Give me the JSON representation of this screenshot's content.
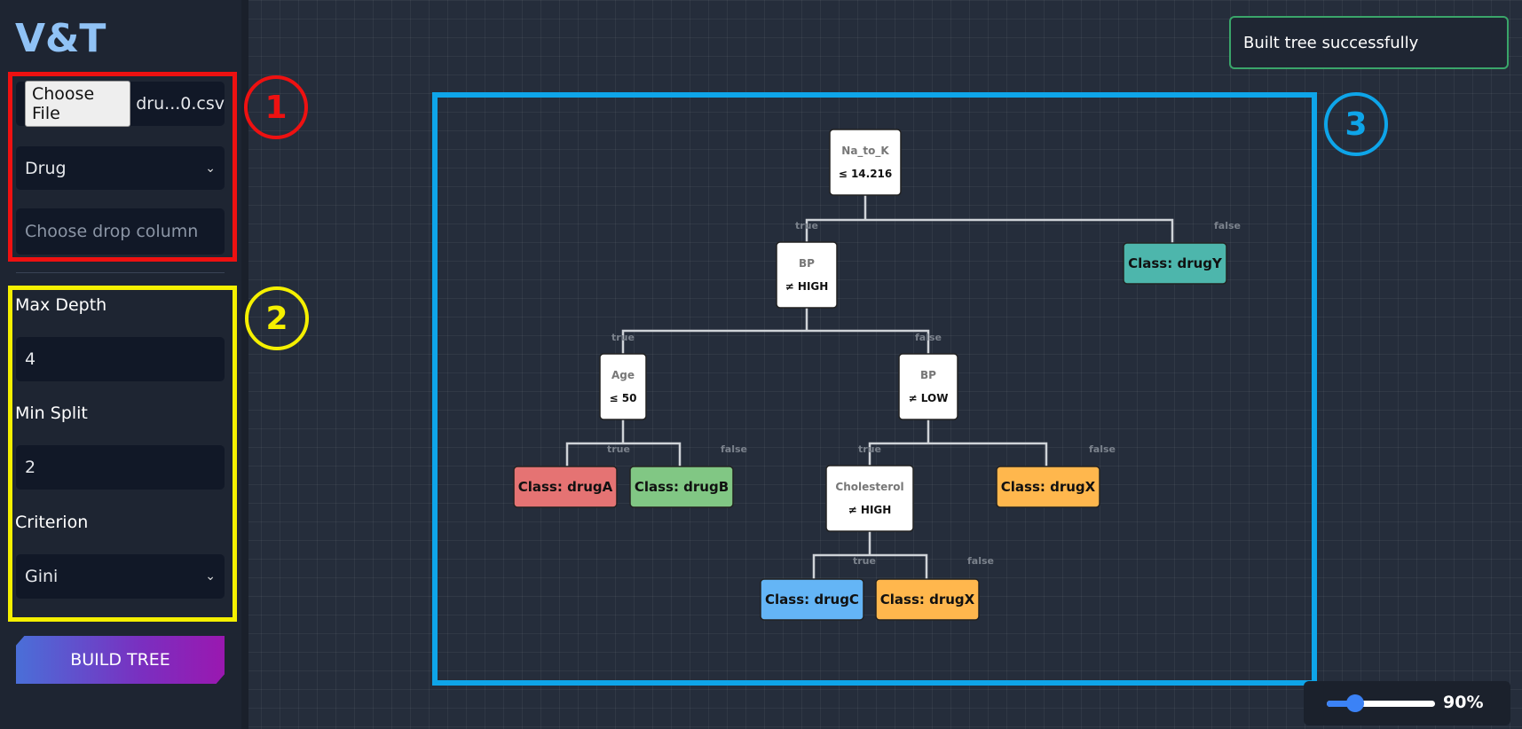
{
  "sidebar": {
    "logo": "V&T",
    "file_button": "Choose File",
    "file_name": "dru...0.csv",
    "target_select": "Drug",
    "drop_column_placeholder": "Choose drop column",
    "max_depth_label": "Max Depth",
    "max_depth_value": "4",
    "min_split_label": "Min Split",
    "min_split_value": "2",
    "criterion_label": "Criterion",
    "criterion_value": "Gini",
    "build_button": "BUILD TREE"
  },
  "annotations": [
    "1",
    "2",
    "3"
  ],
  "toast": "Built tree successfully",
  "zoom": "90%",
  "tree": {
    "splits": [
      {
        "feature": "Na_to_K",
        "condition": "≤ 14.216",
        "true_label": "true",
        "false_label": "false"
      },
      {
        "feature": "BP",
        "condition": "≠ HIGH",
        "true_label": "true",
        "false_label": "false"
      },
      {
        "feature": "Age",
        "condition": "≤ 50",
        "true_label": "true",
        "false_label": "false"
      },
      {
        "feature": "BP",
        "condition": "≠ LOW",
        "true_label": "true",
        "false_label": "false"
      },
      {
        "feature": "Cholesterol",
        "condition": "≠ HIGH",
        "true_label": "true",
        "false_label": "false"
      }
    ],
    "leaves": [
      {
        "label": "Class: drugY",
        "color": "#4db6ac"
      },
      {
        "label": "Class: drugA",
        "color": "#e57373"
      },
      {
        "label": "Class: drugB",
        "color": "#81c784"
      },
      {
        "label": "Class: drugX",
        "color": "#ffb74d"
      },
      {
        "label": "Class: drugC",
        "color": "#64b5f6"
      },
      {
        "label": "Class: drugX",
        "color": "#ffb74d"
      }
    ]
  }
}
